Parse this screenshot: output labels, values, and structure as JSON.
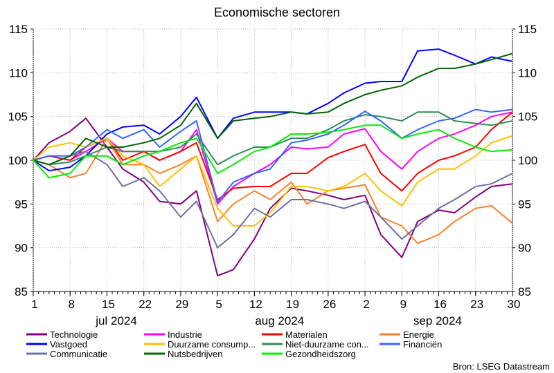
{
  "chart_data": {
    "type": "line",
    "title": "Economische sectoren",
    "source": "Bron: LSEG Datastream",
    "ylim": [
      85,
      115
    ],
    "yticks": [
      85,
      90,
      95,
      100,
      105,
      110,
      115
    ],
    "xlim": [
      "2024-07-01",
      "2024-09-30"
    ],
    "xticks": [
      {
        "date": "2024-07-01",
        "label": "1"
      },
      {
        "date": "2024-07-08",
        "label": "8"
      },
      {
        "date": "2024-07-15",
        "label": "15"
      },
      {
        "date": "2024-07-22",
        "label": "22"
      },
      {
        "date": "2024-07-29",
        "label": "29"
      },
      {
        "date": "2024-08-05",
        "label": "5"
      },
      {
        "date": "2024-08-12",
        "label": "12"
      },
      {
        "date": "2024-08-19",
        "label": "19"
      },
      {
        "date": "2024-08-26",
        "label": "26"
      },
      {
        "date": "2024-09-02",
        "label": "2"
      },
      {
        "date": "2024-09-09",
        "label": "9"
      },
      {
        "date": "2024-09-16",
        "label": "16"
      },
      {
        "date": "2024-09-23",
        "label": "23"
      },
      {
        "date": "2024-09-30",
        "label": "30"
      }
    ],
    "months": [
      {
        "date": "2024-07-16",
        "label": "jul 2024"
      },
      {
        "date": "2024-08-16",
        "label": "aug 2024"
      },
      {
        "date": "2024-09-15",
        "label": "sep 2024"
      }
    ],
    "grid": true,
    "legend_placement": "bottom",
    "x": [
      "2024-07-01",
      "2024-07-04",
      "2024-07-08",
      "2024-07-11",
      "2024-07-15",
      "2024-07-18",
      "2024-07-22",
      "2024-07-25",
      "2024-07-29",
      "2024-08-01",
      "2024-08-05",
      "2024-08-08",
      "2024-08-12",
      "2024-08-15",
      "2024-08-19",
      "2024-08-22",
      "2024-08-26",
      "2024-08-29",
      "2024-09-02",
      "2024-09-05",
      "2024-09-09",
      "2024-09-12",
      "2024-09-16",
      "2024-09-19",
      "2024-09-23",
      "2024-09-26",
      "2024-09-30"
    ],
    "series": [
      {
        "name": "Technologie",
        "color": "#800080",
        "values": [
          100,
          102,
          103.3,
          104.8,
          101.5,
          99,
          97.5,
          95.3,
          95,
          96.5,
          86.8,
          87.5,
          91,
          94.5,
          96.8,
          96.5,
          96,
          95.5,
          96,
          91.5,
          88.9,
          93,
          94.3,
          94,
          95.8,
          97,
          97.3
        ]
      },
      {
        "name": "Industrie",
        "color": "#ff00ff",
        "values": [
          100,
          100.5,
          100,
          101,
          102.5,
          101,
          101,
          100,
          101,
          103.5,
          95,
          97,
          98.5,
          99.5,
          101.5,
          101.3,
          101.5,
          103,
          103.6,
          101,
          99,
          101,
          102.5,
          103,
          104,
          105,
          105.5
        ]
      },
      {
        "name": "Materialen",
        "color": "#ff0000",
        "values": [
          100,
          100.5,
          100,
          101.5,
          102.5,
          100,
          101,
          100,
          101,
          102,
          95.5,
          96.8,
          97,
          97,
          98.5,
          98.5,
          100.3,
          101,
          101.8,
          98.5,
          96.5,
          98.5,
          100,
          100.5,
          101.5,
          103.5,
          105.5
        ]
      },
      {
        "name": "Energie",
        "color": "#ff7f27",
        "values": [
          100,
          99.5,
          98,
          98.5,
          102.5,
          99.5,
          99.5,
          98.5,
          99.5,
          100.5,
          93,
          95,
          96.5,
          95.5,
          97.5,
          95,
          96.5,
          96.8,
          97.2,
          93.5,
          92.5,
          90.5,
          91.5,
          93,
          94.5,
          94.8,
          92.8
        ]
      },
      {
        "name": "Vastgoed",
        "color": "#0000ff",
        "values": [
          100,
          98.8,
          99.2,
          100.5,
          103,
          103.8,
          104,
          103,
          105,
          107.2,
          102.5,
          104.8,
          105.5,
          105.5,
          105.5,
          105.3,
          106.5,
          107.7,
          108.8,
          109,
          109,
          112.5,
          112.7,
          112,
          111,
          111.8,
          111.3
        ]
      },
      {
        "name": "Duurzame consump...",
        "color": "#ffc000",
        "values": [
          100,
          101.5,
          102,
          101.5,
          102.5,
          100.5,
          99.5,
          97,
          99,
          100.5,
          94.5,
          92.5,
          92.5,
          94,
          97,
          97,
          96.5,
          97,
          98.5,
          96.5,
          94.8,
          97.5,
          99,
          99,
          100.5,
          102,
          102.8
        ]
      },
      {
        "name": "Niet-duurzame con...",
        "color": "#2e8b57",
        "values": [
          100,
          99.5,
          99.8,
          100.5,
          101.5,
          101,
          101,
          101,
          101.5,
          103,
          99.5,
          100.5,
          101.5,
          101.5,
          102.5,
          102.5,
          103.5,
          104.5,
          105.2,
          105,
          104.5,
          105.5,
          105.5,
          104.5,
          104.2,
          104,
          104.5
        ]
      },
      {
        "name": "Financiën",
        "color": "#3366ff",
        "values": [
          100,
          100.5,
          100.5,
          101.5,
          103.5,
          102.5,
          103.5,
          101.5,
          103.3,
          104.5,
          95.2,
          97.5,
          98.5,
          99,
          102,
          102.3,
          103,
          104,
          105.6,
          104.5,
          102.5,
          103.5,
          104.5,
          104.8,
          105.8,
          105.5,
          105.8
        ]
      },
      {
        "name": "Communicatie",
        "color": "#7070a0",
        "values": [
          100,
          99.5,
          100.5,
          101,
          99.5,
          97,
          98,
          96.5,
          93.5,
          95.3,
          90,
          91.5,
          94.5,
          93.5,
          95.5,
          95.5,
          95,
          94.5,
          95.3,
          93.5,
          91,
          92.5,
          94.5,
          95.5,
          97,
          97.3,
          98.5
        ]
      },
      {
        "name": "Nutsbedrijven",
        "color": "#006400",
        "values": [
          100,
          99.5,
          100.5,
          102.5,
          101.5,
          101.5,
          102,
          102.5,
          104,
          106.5,
          102.5,
          104.5,
          104.8,
          105,
          105.5,
          105.3,
          105.5,
          106.5,
          107.5,
          108,
          108.5,
          109.5,
          110.5,
          110.5,
          111,
          111.5,
          112.2
        ]
      },
      {
        "name": "Gezondheidszorg",
        "color": "#00ee00",
        "values": [
          100,
          98,
          98.5,
          100.5,
          100.5,
          99.5,
          100.5,
          101,
          102,
          102.5,
          98.5,
          99.5,
          101,
          101.5,
          103,
          103,
          103.2,
          103.5,
          104,
          104,
          102.5,
          103,
          103.5,
          102.5,
          101.5,
          101,
          101.2
        ]
      }
    ]
  }
}
